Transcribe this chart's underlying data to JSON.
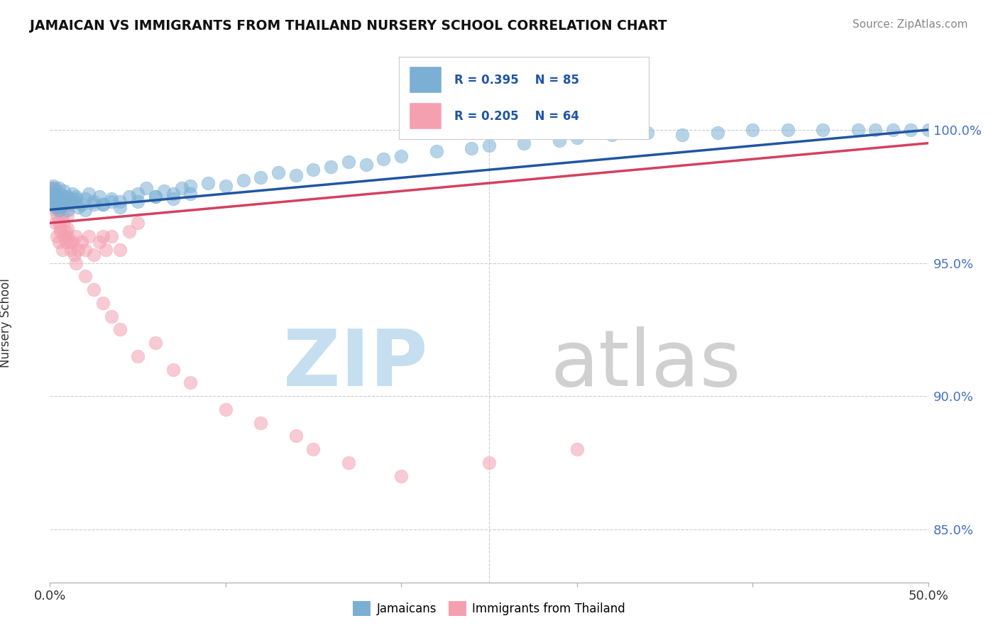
{
  "title": "JAMAICAN VS IMMIGRANTS FROM THAILAND NURSERY SCHOOL CORRELATION CHART",
  "source_text": "Source: ZipAtlas.com",
  "ylabel": "Nursery School",
  "ytick_labels": [
    "85.0%",
    "90.0%",
    "95.0%",
    "100.0%"
  ],
  "ytick_values": [
    85.0,
    90.0,
    95.0,
    100.0
  ],
  "xlim": [
    0.0,
    50.0
  ],
  "ylim": [
    83.0,
    102.5
  ],
  "legend_blue_label": "Jamaicans",
  "legend_pink_label": "Immigrants from Thailand",
  "blue_color": "#7bafd4",
  "pink_color": "#f4a0b0",
  "line_blue_color": "#2155a3",
  "line_pink_color": "#d44060",
  "blue_scatter_x": [
    0.1,
    0.1,
    0.1,
    0.2,
    0.2,
    0.2,
    0.3,
    0.3,
    0.3,
    0.4,
    0.4,
    0.5,
    0.5,
    0.5,
    0.6,
    0.6,
    0.7,
    0.7,
    0.8,
    0.8,
    0.9,
    1.0,
    1.0,
    1.1,
    1.2,
    1.3,
    1.4,
    1.5,
    1.6,
    1.8,
    2.0,
    2.2,
    2.5,
    2.8,
    3.0,
    3.5,
    4.0,
    4.5,
    5.0,
    5.5,
    6.0,
    6.5,
    7.0,
    7.5,
    8.0,
    9.0,
    10.0,
    11.0,
    12.0,
    13.0,
    14.0,
    15.0,
    16.0,
    17.0,
    18.0,
    19.0,
    20.0,
    22.0,
    24.0,
    25.0,
    27.0,
    29.0,
    30.0,
    32.0,
    34.0,
    36.0,
    38.0,
    40.0,
    42.0,
    44.0,
    46.0,
    47.0,
    48.0,
    49.0,
    50.0,
    2.0,
    3.0,
    4.0,
    5.0,
    6.0,
    7.0,
    8.0,
    1.5,
    2.5,
    3.5
  ],
  "blue_scatter_y": [
    97.2,
    97.5,
    97.8,
    97.3,
    97.6,
    97.9,
    97.1,
    97.4,
    97.7,
    97.2,
    97.5,
    97.0,
    97.3,
    97.8,
    97.1,
    97.6,
    97.2,
    97.5,
    97.3,
    97.7,
    97.4,
    97.0,
    97.5,
    97.2,
    97.4,
    97.6,
    97.3,
    97.5,
    97.1,
    97.2,
    97.4,
    97.6,
    97.3,
    97.5,
    97.2,
    97.4,
    97.3,
    97.5,
    97.6,
    97.8,
    97.5,
    97.7,
    97.6,
    97.8,
    97.9,
    98.0,
    97.9,
    98.1,
    98.2,
    98.4,
    98.3,
    98.5,
    98.6,
    98.8,
    98.7,
    98.9,
    99.0,
    99.2,
    99.3,
    99.4,
    99.5,
    99.6,
    99.7,
    99.8,
    99.9,
    99.8,
    99.9,
    100.0,
    100.0,
    100.0,
    100.0,
    100.0,
    100.0,
    100.0,
    100.0,
    97.0,
    97.2,
    97.1,
    97.3,
    97.5,
    97.4,
    97.6,
    97.4,
    97.2,
    97.3
  ],
  "pink_scatter_x": [
    0.1,
    0.1,
    0.2,
    0.2,
    0.3,
    0.3,
    0.3,
    0.4,
    0.4,
    0.4,
    0.5,
    0.5,
    0.5,
    0.6,
    0.6,
    0.7,
    0.7,
    0.8,
    0.9,
    1.0,
    1.0,
    1.1,
    1.2,
    1.3,
    1.4,
    1.5,
    1.6,
    1.8,
    2.0,
    2.2,
    2.5,
    2.8,
    3.0,
    3.2,
    3.5,
    4.0,
    4.5,
    5.0,
    0.3,
    0.4,
    0.5,
    0.6,
    0.7,
    0.8,
    0.9,
    1.0,
    1.5,
    2.0,
    2.5,
    3.0,
    3.5,
    4.0,
    5.0,
    6.0,
    7.0,
    8.0,
    10.0,
    12.0,
    14.0,
    15.0,
    17.0,
    20.0,
    25.0,
    30.0
  ],
  "pink_scatter_y": [
    97.5,
    97.8,
    97.2,
    97.6,
    97.0,
    97.4,
    97.8,
    96.8,
    97.2,
    97.6,
    96.5,
    97.0,
    97.4,
    96.3,
    97.1,
    96.8,
    97.3,
    96.5,
    96.2,
    96.0,
    96.8,
    95.8,
    95.5,
    95.8,
    95.3,
    96.0,
    95.5,
    95.8,
    95.5,
    96.0,
    95.3,
    95.8,
    96.0,
    95.5,
    96.0,
    95.5,
    96.2,
    96.5,
    96.5,
    96.0,
    95.8,
    96.2,
    95.5,
    96.0,
    95.8,
    96.3,
    95.0,
    94.5,
    94.0,
    93.5,
    93.0,
    92.5,
    91.5,
    92.0,
    91.0,
    90.5,
    89.5,
    89.0,
    88.5,
    88.0,
    87.5,
    87.0,
    87.5,
    88.0
  ]
}
